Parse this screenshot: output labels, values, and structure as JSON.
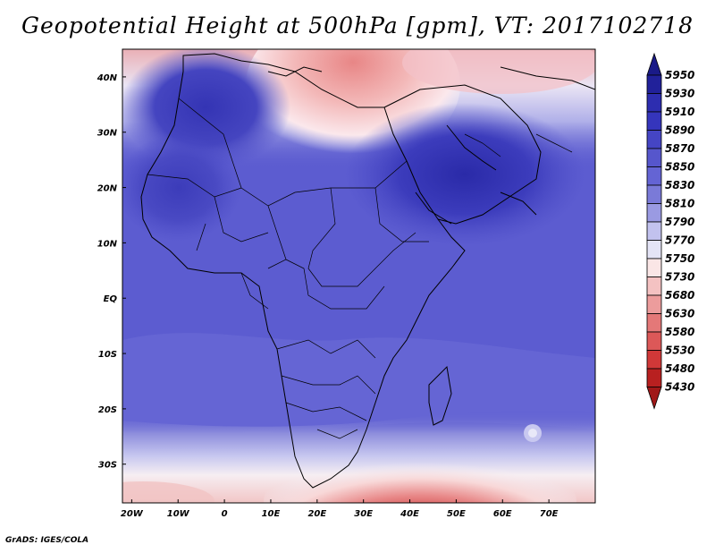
{
  "title": "Geopotential Height at 500hPa [gpm], VT: 2017102718",
  "credit": "GrADS: IGES/COLA",
  "map": {
    "lat_labels": [
      "40N",
      "30N",
      "20N",
      "10N",
      "EQ",
      "10S",
      "20S",
      "30S"
    ],
    "lat_values": [
      40,
      30,
      20,
      10,
      0,
      -10,
      -20,
      -30
    ],
    "lon_labels": [
      "20W",
      "10W",
      "0",
      "10E",
      "20E",
      "30E",
      "40E",
      "50E",
      "60E",
      "70E"
    ],
    "lon_values": [
      -20,
      -10,
      0,
      10,
      20,
      30,
      40,
      50,
      60,
      70
    ],
    "lon_range": [
      -22,
      80
    ],
    "lat_range": [
      -37,
      45
    ]
  },
  "colorbar": {
    "levels": [
      "5950",
      "5930",
      "5910",
      "5890",
      "5870",
      "5850",
      "5830",
      "5810",
      "5790",
      "5770",
      "5750",
      "5730",
      "5680",
      "5630",
      "5580",
      "5530",
      "5480",
      "5430"
    ],
    "colors": [
      "#21219a",
      "#2d2db0",
      "#3535bc",
      "#4545c4",
      "#5656cc",
      "#6464d4",
      "#7a7ad8",
      "#9a9ae2",
      "#c2c2ee",
      "#e4e4f6",
      "#fae6e6",
      "#f4c2c2",
      "#ec9c9c",
      "#e47878",
      "#dc5858",
      "#d03838",
      "#b82020",
      "#9a1414"
    ],
    "top_arrow_color": "#1a1a88",
    "bottom_arrow_color": "#a01818"
  },
  "field_colors": {
    "deep_blue": "#3b3bb8",
    "mid_blue": "#5a5ad0",
    "light_blue": "#8888dc",
    "pale_blue": "#c4c4ee",
    "white": "#f6f0f4",
    "pale_red": "#f4c4c4",
    "red": "#e47878",
    "dark_red": "#b82424"
  }
}
